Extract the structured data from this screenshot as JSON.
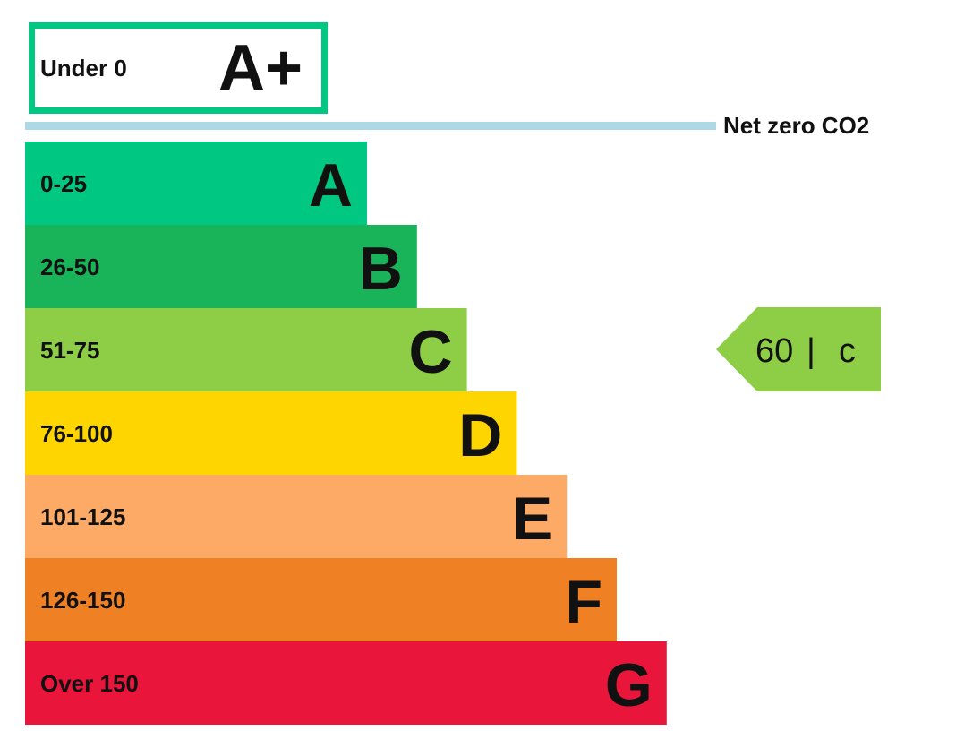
{
  "chart_data": {
    "type": "bar",
    "orientation": "horizontal",
    "top_band": {
      "range": "Under 0",
      "letter": "A+",
      "color": "#00c781"
    },
    "net_zero_label": "Net zero CO2",
    "net_zero_line_color": "#add8e6",
    "bands": [
      {
        "range": "0-25",
        "letter": "A",
        "color": "#00c781"
      },
      {
        "range": "26-50",
        "letter": "B",
        "color": "#19b459"
      },
      {
        "range": "51-75",
        "letter": "C",
        "color": "#8dce46"
      },
      {
        "range": "76-100",
        "letter": "D",
        "color": "#ffd500"
      },
      {
        "range": "101-125",
        "letter": "E",
        "color": "#fcaa65"
      },
      {
        "range": "126-150",
        "letter": "F",
        "color": "#ef8023"
      },
      {
        "range": "Over 150",
        "letter": "G",
        "color": "#e9153b"
      }
    ],
    "current_rating": {
      "score": "60",
      "separator": "|",
      "letter": "c",
      "band_index": 2,
      "color": "#8dce46"
    }
  }
}
